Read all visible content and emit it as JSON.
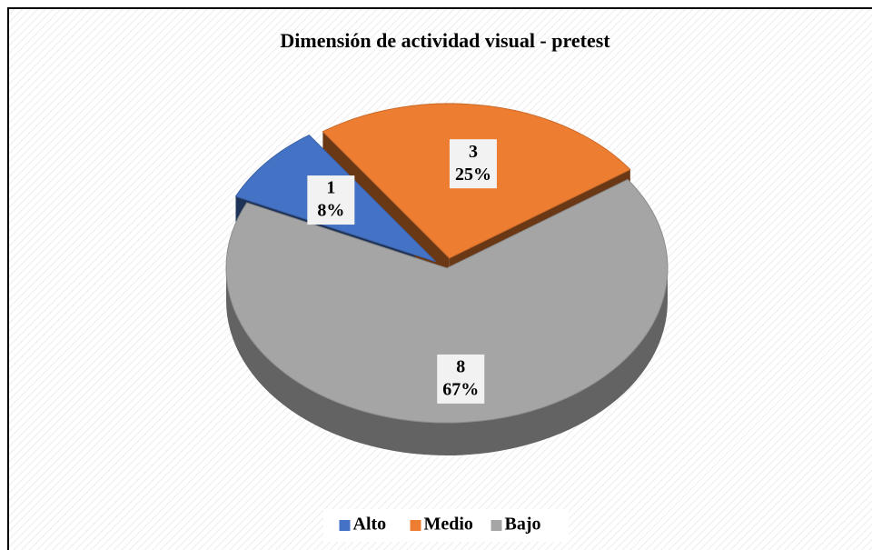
{
  "chart_data": {
    "type": "pie",
    "title": "Dimensión de actividad visual - pretest",
    "categories": [
      "Alto",
      "Medio",
      "Bajo"
    ],
    "values": [
      1,
      3,
      8
    ],
    "percentages": [
      8,
      25,
      67
    ],
    "percentage_labels": [
      "8%",
      "25%",
      "67%"
    ],
    "colors": [
      "#4472c4",
      "#ed7d31",
      "#a5a5a5"
    ],
    "legend": "bottom"
  }
}
